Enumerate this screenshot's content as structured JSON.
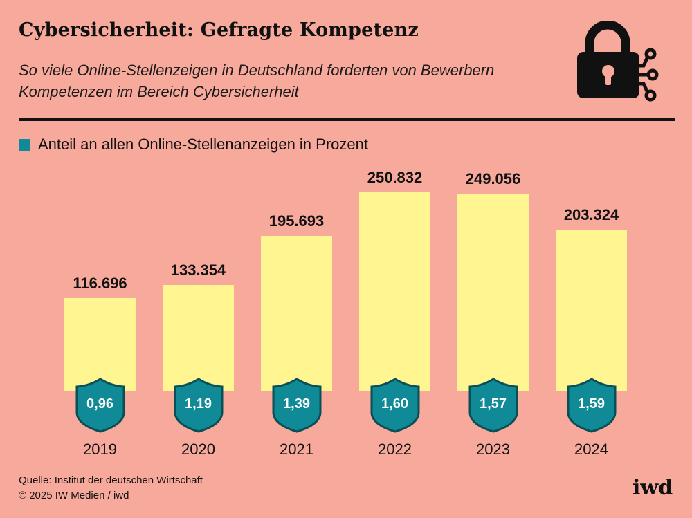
{
  "header": {
    "title": "Cybersicherheit: Gefragte Kompetenz",
    "subtitle": "So viele Online-Stellenzeigen in Deutschland forderten von Bewerbern Kompetenzen im Bereich Cybersicherheit"
  },
  "legend": {
    "label": "Anteil an allen Online-Stellenanzeigen in Prozent",
    "color": "#0f8a96"
  },
  "icon": "lock-network-icon",
  "colors": {
    "background": "#f7a99c",
    "bar": "#fff691",
    "shield": "#0f8a96",
    "shield_border": "#0a4f56"
  },
  "chart_data": {
    "type": "bar",
    "categories": [
      "2019",
      "2020",
      "2021",
      "2022",
      "2023",
      "2024"
    ],
    "value_labels": [
      "116.696",
      "133.354",
      "195.693",
      "250.832",
      "249.056",
      "203.324"
    ],
    "values": [
      116696,
      133354,
      195693,
      250832,
      249056,
      203324
    ],
    "share_labels": [
      "0,96",
      "1,19",
      "1,39",
      "1,60",
      "1,57",
      "1,59"
    ],
    "shares": [
      0.96,
      1.19,
      1.39,
      1.6,
      1.57,
      1.59
    ],
    "ylim": [
      0,
      260000
    ]
  },
  "footer": {
    "source": "Quelle: Institut der deutschen Wirtschaft",
    "copyright": "© 2025 IW Medien / iwd",
    "logo": "iwd"
  }
}
